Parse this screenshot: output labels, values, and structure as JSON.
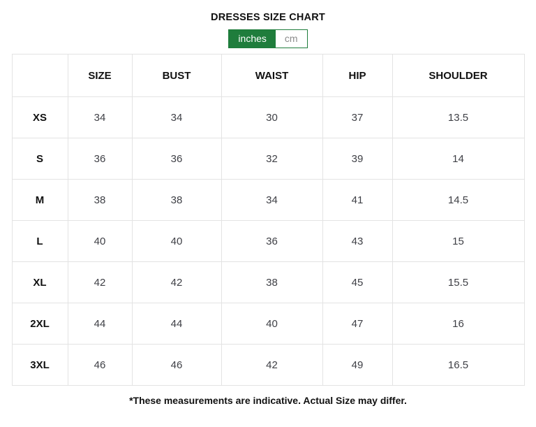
{
  "page": {
    "title": "DRESSES SIZE CHART",
    "footnote": "*These measurements are indicative. Actual Size may differ."
  },
  "unit_toggle": {
    "options": [
      {
        "label": "inches",
        "selected": true
      },
      {
        "label": "cm",
        "selected": false
      }
    ],
    "active_color": "#1f7d3c"
  },
  "table": {
    "headers": [
      "",
      "SIZE",
      "BUST",
      "WAIST",
      "HIP",
      "SHOULDER"
    ],
    "rows": [
      {
        "label": "XS",
        "values": [
          "34",
          "34",
          "30",
          "37",
          "13.5"
        ]
      },
      {
        "label": "S",
        "values": [
          "36",
          "36",
          "32",
          "39",
          "14"
        ]
      },
      {
        "label": "M",
        "values": [
          "38",
          "38",
          "34",
          "41",
          "14.5"
        ]
      },
      {
        "label": "L",
        "values": [
          "40",
          "40",
          "36",
          "43",
          "15"
        ]
      },
      {
        "label": "XL",
        "values": [
          "42",
          "42",
          "38",
          "45",
          "15.5"
        ]
      },
      {
        "label": "2XL",
        "values": [
          "44",
          "44",
          "40",
          "47",
          "16"
        ]
      },
      {
        "label": "3XL",
        "values": [
          "46",
          "46",
          "42",
          "49",
          "16.5"
        ]
      }
    ]
  }
}
